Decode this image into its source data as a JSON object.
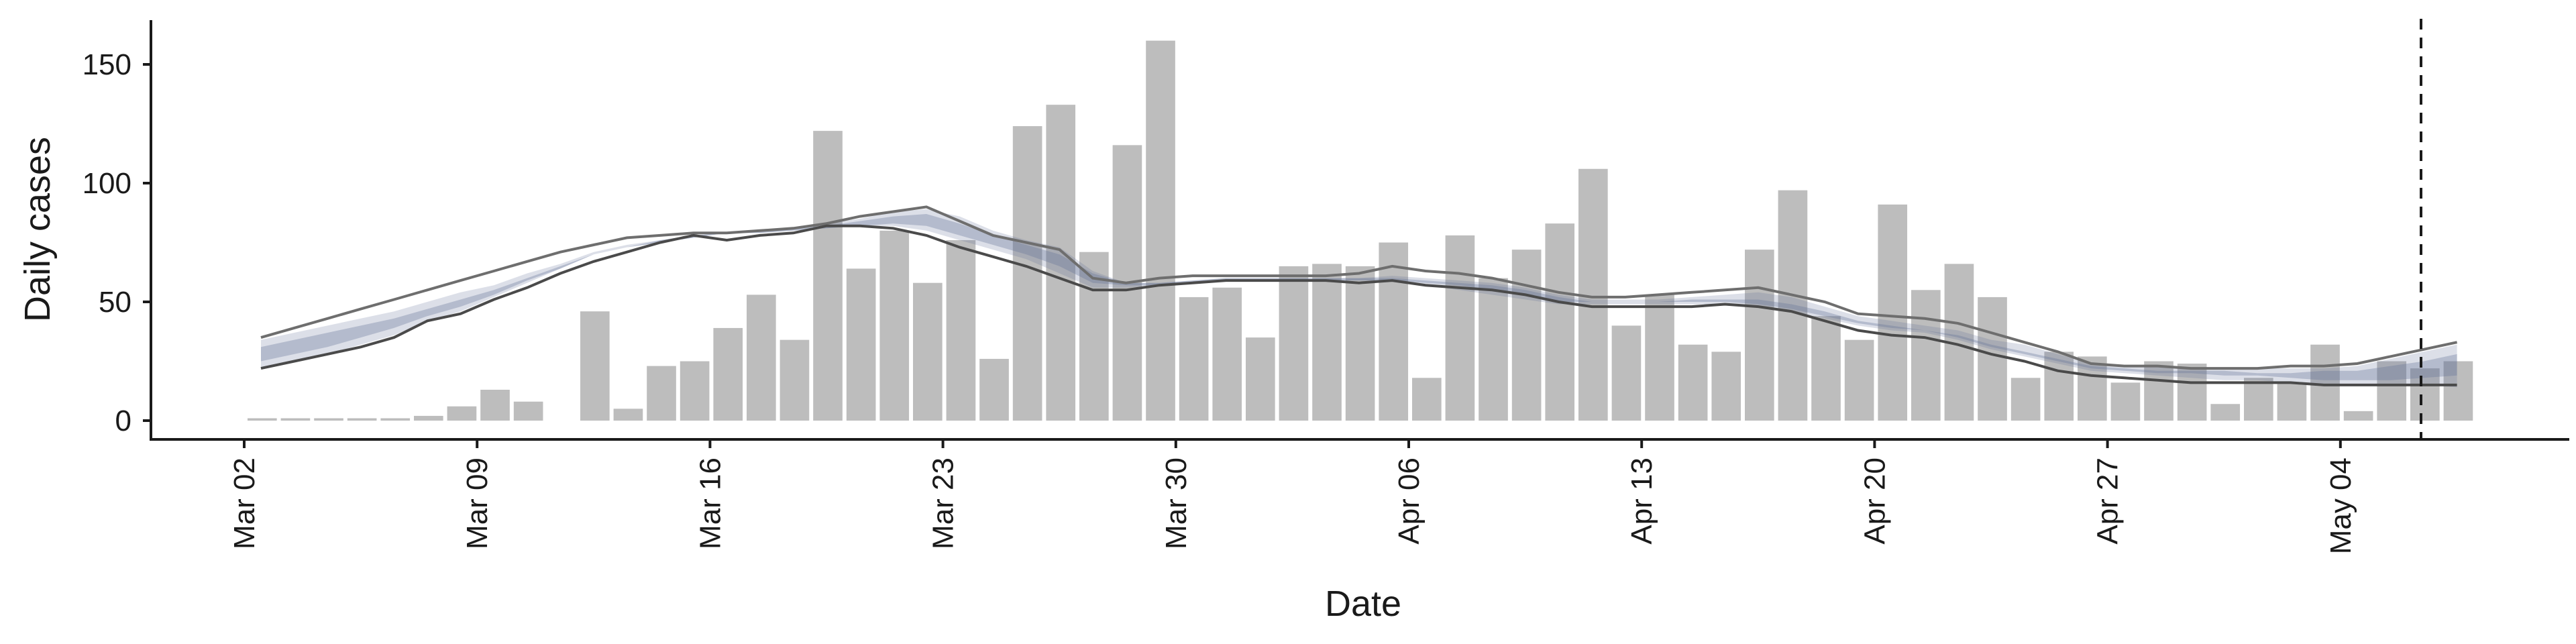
{
  "chart_data": {
    "type": "bar",
    "xlabel": "Date",
    "ylabel": "Daily cases",
    "x_ticks": [
      "Mar 02",
      "Mar 09",
      "Mar 16",
      "Mar 23",
      "Mar 30",
      "Apr 06",
      "Apr 13",
      "Apr 20",
      "Apr 27",
      "May 04"
    ],
    "y_ticks": [
      0,
      50,
      100,
      150
    ],
    "ylim": [
      -8,
      168
    ],
    "x_start": "Mar 02",
    "grid": false,
    "legend": "none",
    "dashed_marker_date": "May 06",
    "bars": {
      "start_date": "Mar 02",
      "color": "#bdbdbd",
      "values": [
        1,
        1,
        1,
        1,
        1,
        2,
        6,
        13,
        8,
        0,
        46,
        5,
        23,
        25,
        39,
        53,
        34,
        122,
        64,
        80,
        58,
        76,
        26,
        124,
        133,
        71,
        116,
        160,
        52,
        56,
        35,
        65,
        66,
        65,
        75,
        18,
        78,
        60,
        72,
        83,
        106,
        40,
        53,
        32,
        29,
        72,
        97,
        44,
        34,
        91,
        55,
        66,
        52,
        18,
        29,
        27,
        16,
        25,
        24,
        7,
        18,
        16,
        32,
        4,
        25,
        22,
        25
      ]
    },
    "series": [
      {
        "start_date": "Mar 02",
        "color": "#5f6f96",
        "band_outer": {
          "upper": [
            34,
            37,
            40,
            43,
            46,
            50,
            54,
            57,
            62,
            66,
            71,
            74,
            76,
            78,
            79,
            80,
            81,
            83,
            85,
            88,
            89,
            86,
            80,
            76,
            73,
            63,
            58,
            58,
            59,
            60,
            60,
            60,
            60,
            60,
            61,
            60,
            59,
            58,
            56,
            53,
            51,
            51,
            51,
            52,
            53,
            54,
            52,
            48,
            44,
            42,
            40,
            38,
            34,
            32,
            28,
            24,
            23,
            23,
            22,
            22,
            22,
            22,
            22,
            23,
            26,
            29,
            32
          ],
          "lower": [
            22,
            25,
            28,
            32,
            36,
            42,
            46,
            52,
            58,
            64,
            70,
            73,
            75,
            77,
            79,
            79,
            80,
            81,
            82,
            82,
            80,
            76,
            72,
            68,
            62,
            56,
            56,
            57,
            58,
            59,
            59,
            59,
            59,
            59,
            59,
            57,
            55,
            53,
            51,
            49,
            49,
            49,
            49,
            49,
            49,
            48,
            46,
            43,
            40,
            38,
            37,
            34,
            30,
            27,
            24,
            21,
            20,
            19,
            18,
            17,
            17,
            16,
            15,
            15,
            15,
            15,
            14
          ]
        },
        "band_inner": {
          "upper": [
            31,
            34,
            37,
            40,
            43,
            47,
            51,
            55,
            60,
            65,
            70,
            73,
            76,
            78,
            79,
            80,
            81,
            82,
            84,
            86,
            87,
            83,
            78,
            74,
            70,
            62,
            58,
            58,
            59,
            60,
            60,
            60,
            60,
            60,
            60,
            59,
            58,
            57,
            55,
            52,
            50,
            50,
            50,
            51,
            51,
            51,
            49,
            46,
            42,
            40,
            38,
            36,
            32,
            29,
            26,
            23,
            22,
            21,
            21,
            21,
            20,
            20,
            21,
            21,
            23,
            25,
            28
          ],
          "lower": [
            25,
            28,
            31,
            35,
            39,
            44,
            48,
            53,
            59,
            64,
            70,
            73,
            75,
            77,
            79,
            79,
            80,
            81,
            82,
            83,
            82,
            78,
            74,
            70,
            65,
            58,
            57,
            57,
            58,
            59,
            59,
            59,
            59,
            59,
            59,
            58,
            57,
            55,
            53,
            50,
            50,
            50,
            50,
            50,
            50,
            49,
            47,
            44,
            41,
            39,
            38,
            35,
            31,
            28,
            25,
            22,
            21,
            20,
            20,
            19,
            19,
            18,
            17,
            17,
            17,
            18,
            19
          ]
        },
        "line_upper": [
          35,
          39,
          43,
          47,
          51,
          55,
          59,
          63,
          67,
          71,
          74,
          77,
          78,
          79,
          79,
          80,
          81,
          83,
          86,
          88,
          90,
          84,
          78,
          75,
          72,
          60,
          58,
          60,
          61,
          61,
          61,
          61,
          61,
          62,
          65,
          63,
          62,
          60,
          57,
          54,
          52,
          52,
          53,
          54,
          55,
          56,
          53,
          50,
          45,
          44,
          43,
          41,
          37,
          33,
          29,
          24,
          23,
          23,
          22,
          22,
          22,
          23,
          23,
          24,
          27,
          30,
          33
        ],
        "line_lower": [
          22,
          25,
          28,
          31,
          35,
          42,
          45,
          51,
          56,
          62,
          67,
          71,
          75,
          78,
          76,
          78,
          79,
          82,
          82,
          81,
          78,
          73,
          69,
          65,
          60,
          55,
          55,
          57,
          58,
          59,
          59,
          59,
          59,
          58,
          59,
          57,
          56,
          55,
          53,
          50,
          48,
          48,
          48,
          48,
          49,
          48,
          46,
          42,
          38,
          36,
          35,
          32,
          28,
          25,
          21,
          19,
          18,
          17,
          16,
          16,
          16,
          16,
          15,
          15,
          15,
          15,
          15
        ]
      }
    ]
  }
}
